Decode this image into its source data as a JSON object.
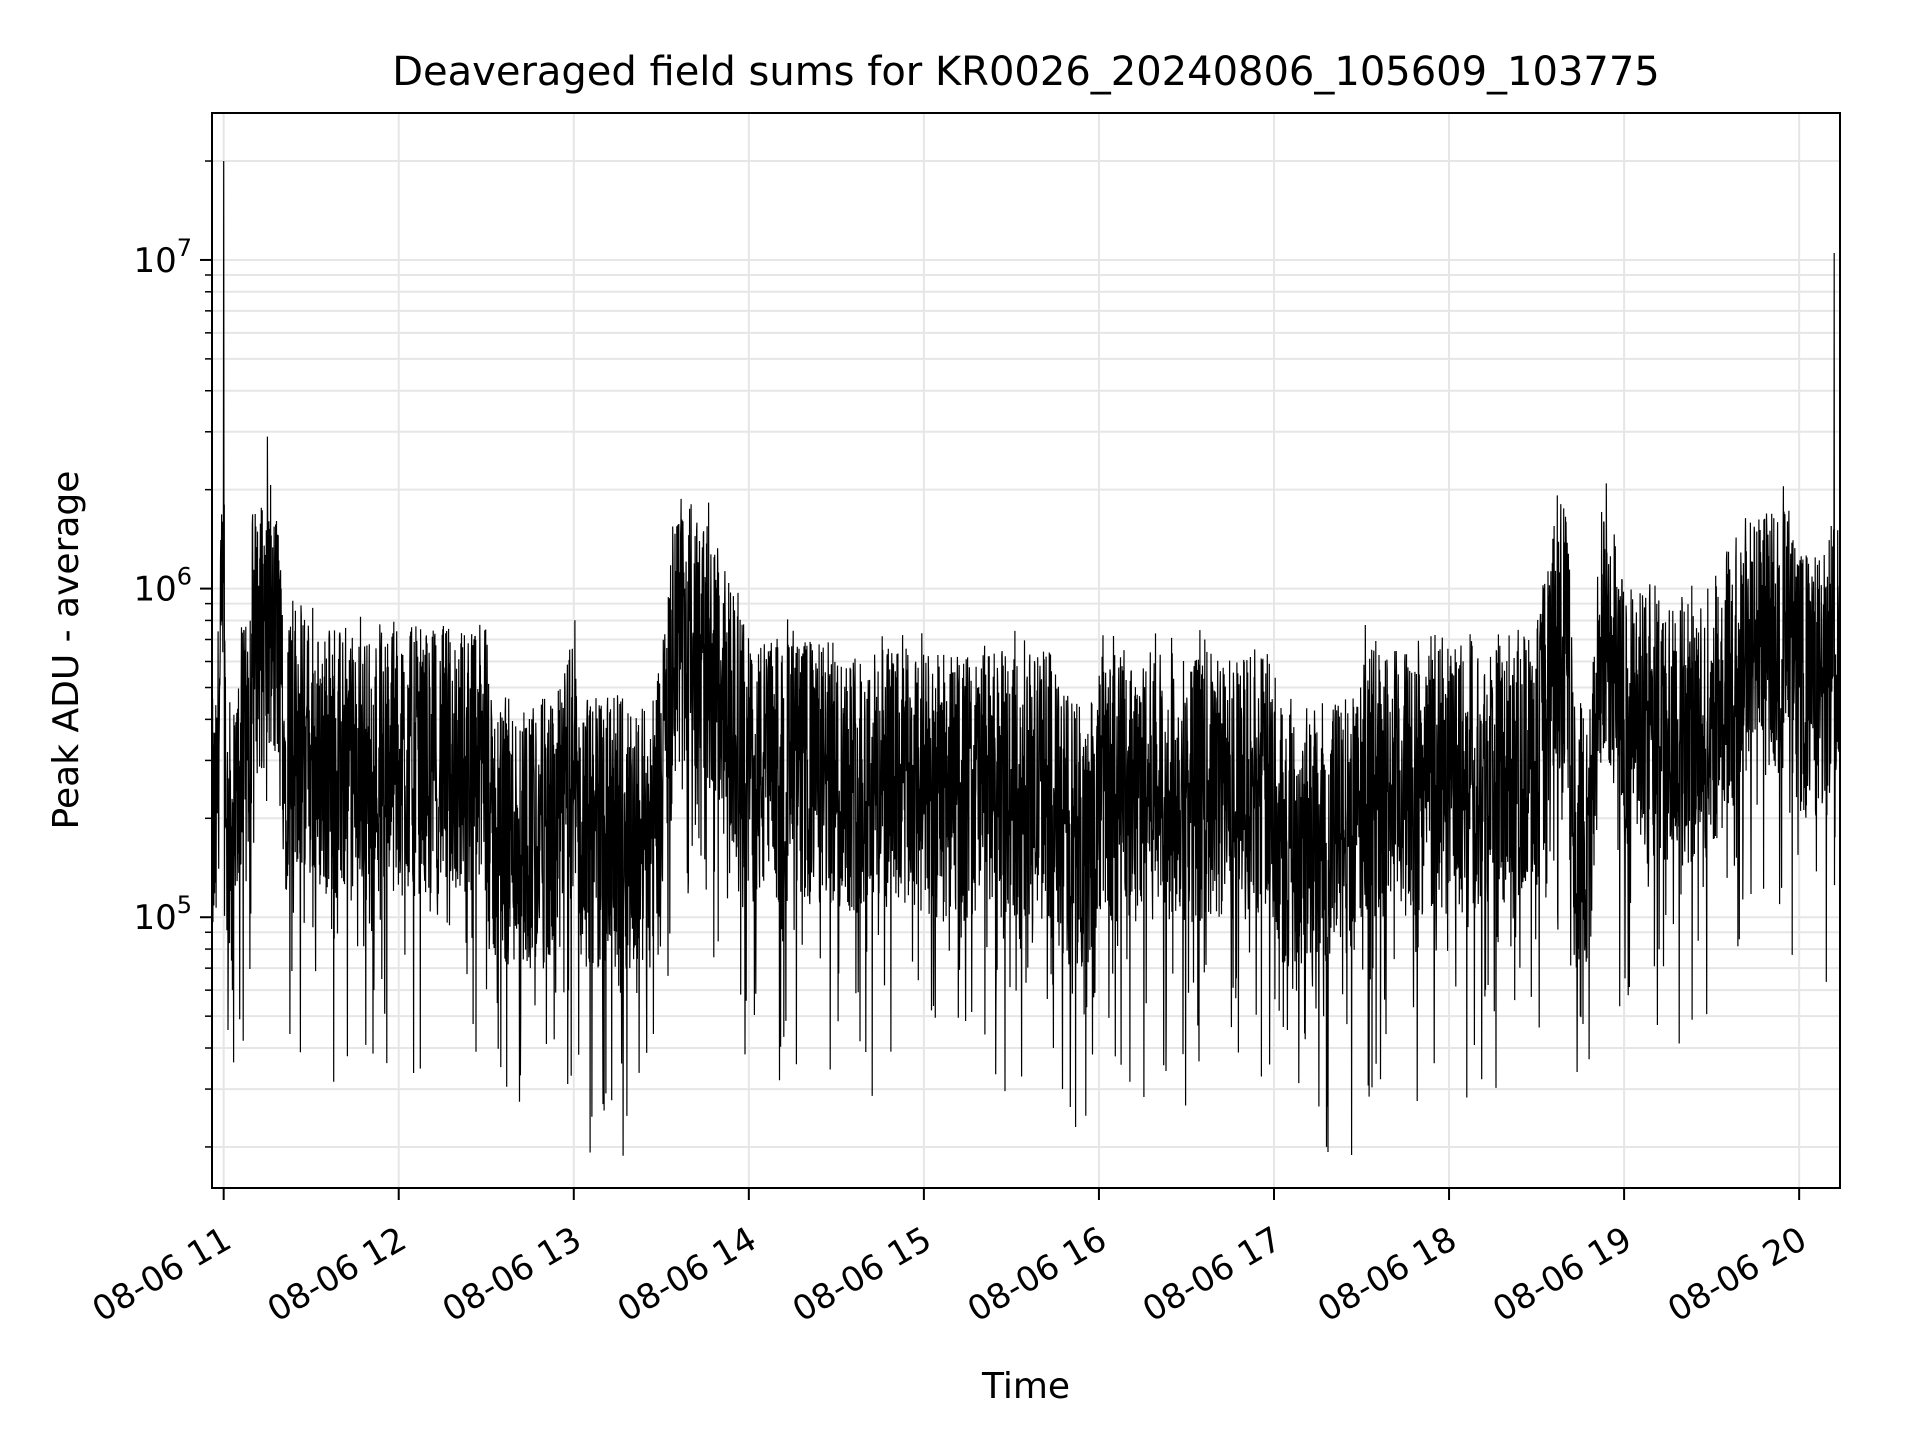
{
  "chart_data": {
    "type": "line",
    "title": "Deaveraged field sums for KR0026_20240806_105609_103775",
    "xlabel": "Time",
    "ylabel": "Peak ADU - average",
    "yscale": "log",
    "ylim": [
      15000,
      28000000
    ],
    "xlim": [
      "2024-08-06 10:56",
      "2024-08-06 20:14"
    ],
    "x_ticks": [
      "08-06 11",
      "08-06 12",
      "08-06 13",
      "08-06 14",
      "08-06 15",
      "08-06 16",
      "08-06 17",
      "08-06 18",
      "08-06 19",
      "08-06 20"
    ],
    "y_ticks": [
      {
        "value": 100000,
        "base": "10",
        "exp": "5"
      },
      {
        "value": 1000000,
        "base": "10",
        "exp": "6"
      },
      {
        "value": 10000000,
        "base": "10",
        "exp": "7"
      }
    ],
    "grid": true,
    "line_color": "#000000",
    "grid_color": "#e6e6e6",
    "series": [
      {
        "x": [
          "2024-08-06 10:56",
          "2024-08-06 10:58",
          "2024-08-06 11:00",
          "2024-08-06 11:01",
          "2024-08-06 11:03",
          "2024-08-06 11:05",
          "2024-08-06 11:08",
          "2024-08-06 11:10",
          "2024-08-06 11:15",
          "2024-08-06 11:17",
          "2024-08-06 11:18",
          "2024-08-06 11:20",
          "2024-08-06 11:21",
          "2024-08-06 11:23",
          "2024-08-06 11:30",
          "2024-08-06 11:45",
          "2024-08-06 12:00",
          "2024-08-06 12:30",
          "2024-08-06 12:35",
          "2024-08-06 13:00",
          "2024-08-06 13:10",
          "2024-08-06 13:30",
          "2024-08-06 13:38",
          "2024-08-06 14:00",
          "2024-08-06 14:30",
          "2024-08-06 15:00",
          "2024-08-06 15:30",
          "2024-08-06 15:45",
          "2024-08-06 15:52",
          "2024-08-06 16:00",
          "2024-08-06 16:30",
          "2024-08-06 17:00",
          "2024-08-06 17:18",
          "2024-08-06 17:30",
          "2024-08-06 17:50",
          "2024-08-06 18:00",
          "2024-08-06 18:30",
          "2024-08-06 18:40",
          "2024-08-06 18:45",
          "2024-08-06 18:53",
          "2024-08-06 19:00",
          "2024-08-06 19:15",
          "2024-08-06 19:30",
          "2024-08-06 19:50",
          "2024-08-06 20:00",
          "2024-08-06 20:10",
          "2024-08-06 20:12",
          "2024-08-06 20:14"
        ],
        "y": [
          50000,
          300000,
          20000000,
          200000,
          60000,
          300000,
          300000,
          900000,
          2900000,
          600000,
          1000000,
          500000,
          280000,
          400000,
          300000,
          280000,
          300000,
          300000,
          35000,
          300000,
          27000,
          280000,
          1000000,
          280000,
          270000,
          250000,
          250000,
          250000,
          23000,
          250000,
          250000,
          250000,
          20000,
          260000,
          250000,
          260000,
          300000,
          1100000,
          50000,
          1600000,
          400000,
          350000,
          400000,
          1500000,
          500000,
          500000,
          10500000,
          600000
        ]
      }
    ]
  }
}
